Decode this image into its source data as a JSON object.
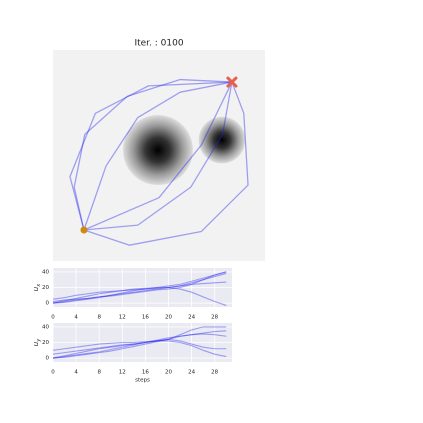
{
  "chart_data": [
    {
      "type": "trajectory",
      "title": "Iter. : 0100",
      "xlim": [
        0,
        100
      ],
      "ylim": [
        0,
        100
      ],
      "obstacles": [
        {
          "x": 49.5,
          "y": 52.6,
          "r": 16.5
        },
        {
          "x": 79.7,
          "y": 57.3,
          "r": 11
        }
      ],
      "start": {
        "x": 14.6,
        "y": 14.7,
        "color": "#d08a10"
      },
      "goal": {
        "x": 84.4,
        "y": 84.8,
        "color": "#e8604c"
      },
      "color": "#2020f0",
      "trajectories": [
        {
          "x": [
            14.6,
            10,
            15,
            35,
            60,
            84.4
          ],
          "y": [
            14.7,
            35,
            60,
            78,
            86,
            84.8
          ]
        },
        {
          "x": [
            14.6,
            25,
            40,
            60,
            84.4
          ],
          "y": [
            14.7,
            45,
            68,
            80,
            84.8
          ]
        },
        {
          "x": [
            14.6,
            40,
            65,
            80,
            84.4
          ],
          "y": [
            14.7,
            17,
            35,
            60,
            84.8
          ]
        },
        {
          "x": [
            14.6,
            36,
            70,
            92,
            90,
            84.4
          ],
          "y": [
            14.7,
            7.5,
            14,
            36,
            70,
            84.8
          ]
        },
        {
          "x": [
            14.6,
            8,
            20,
            45,
            84.4
          ],
          "y": [
            14.7,
            40,
            70,
            83,
            84.8
          ]
        },
        {
          "x": [
            14.6,
            50,
            70,
            84.4
          ],
          "y": [
            14.7,
            30,
            55,
            84.8
          ]
        }
      ]
    },
    {
      "type": "line",
      "ylabel": "u",
      "ylabel_sub": "x",
      "xlim": [
        0,
        31
      ],
      "ylim": [
        -5,
        45
      ],
      "xticks": [
        0,
        4,
        8,
        12,
        16,
        20,
        24,
        28
      ],
      "yticks": [
        0,
        20,
        40
      ],
      "grid": true,
      "x": [
        0,
        2,
        4,
        6,
        8,
        10,
        12,
        14,
        16,
        18,
        20,
        22,
        24,
        26,
        28,
        30
      ],
      "series": [
        {
          "color": "#2020f0",
          "values": [
            0,
            2,
            4,
            6,
            8,
            10,
            12,
            14,
            16,
            18,
            20,
            22,
            26,
            30,
            34,
            38
          ]
        },
        {
          "color": "#2020f0",
          "values": [
            2,
            4,
            5,
            6,
            8,
            9,
            11,
            13,
            15,
            17,
            18,
            20,
            24,
            30,
            36,
            40
          ]
        },
        {
          "color": "#2020f0",
          "values": [
            0,
            1,
            3,
            5,
            7,
            10,
            13,
            16,
            18,
            20,
            20,
            18,
            14,
            8,
            2,
            -3
          ]
        },
        {
          "color": "#2020f0",
          "values": [
            5,
            7,
            10,
            12,
            14,
            15,
            16,
            17,
            18,
            19,
            20,
            22,
            24,
            25,
            26,
            27
          ]
        },
        {
          "color": "#2020f0",
          "values": [
            0,
            3,
            6,
            9,
            12,
            14,
            16,
            18,
            19,
            20,
            22,
            24,
            28,
            32,
            36,
            40
          ]
        }
      ]
    },
    {
      "type": "line",
      "ylabel": "u",
      "ylabel_sub": "y",
      "xlabel": "steps",
      "xlim": [
        0,
        31
      ],
      "ylim": [
        -5,
        45
      ],
      "xticks": [
        0,
        4,
        8,
        12,
        16,
        20,
        24,
        28
      ],
      "yticks": [
        0,
        20,
        40
      ],
      "grid": true,
      "x": [
        0,
        2,
        4,
        6,
        8,
        10,
        12,
        14,
        16,
        18,
        20,
        22,
        24,
        26,
        28,
        30
      ],
      "series": [
        {
          "color": "#2020f0",
          "values": [
            0,
            3,
            6,
            9,
            12,
            14,
            16,
            18,
            20,
            22,
            24,
            30,
            36,
            40,
            40,
            40
          ]
        },
        {
          "color": "#2020f0",
          "values": [
            5,
            7,
            9,
            11,
            13,
            15,
            17,
            18,
            20,
            22,
            24,
            22,
            18,
            14,
            12,
            12
          ]
        },
        {
          "color": "#2020f0",
          "values": [
            0,
            2,
            4,
            6,
            8,
            11,
            14,
            17,
            20,
            23,
            26,
            28,
            30,
            32,
            34,
            35
          ]
        },
        {
          "color": "#2020f0",
          "values": [
            10,
            12,
            14,
            16,
            18,
            19,
            20,
            20,
            21,
            22,
            22,
            20,
            16,
            10,
            5,
            2
          ]
        },
        {
          "color": "#2020f0",
          "values": [
            0,
            1,
            3,
            5,
            7,
            9,
            12,
            15,
            18,
            21,
            24,
            28,
            30,
            31,
            30,
            28
          ]
        }
      ]
    }
  ]
}
